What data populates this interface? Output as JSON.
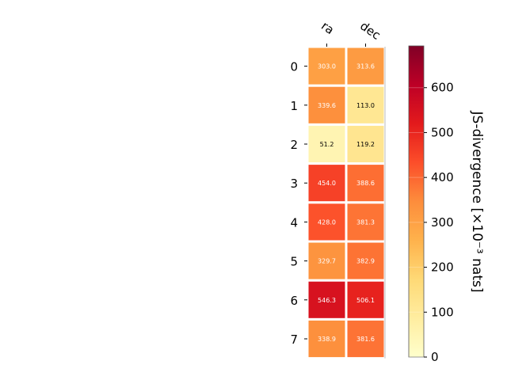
{
  "chart_data": {
    "type": "heatmap",
    "columns": [
      "ra",
      "dec"
    ],
    "rows": [
      "0",
      "1",
      "2",
      "3",
      "4",
      "5",
      "6",
      "7"
    ],
    "values": [
      [
        303.0,
        313.6
      ],
      [
        339.6,
        113.0
      ],
      [
        51.2,
        119.2
      ],
      [
        454.0,
        388.6
      ],
      [
        428.0,
        381.3
      ],
      [
        329.7,
        382.9
      ],
      [
        546.3,
        506.1
      ],
      [
        338.9,
        381.6
      ]
    ],
    "value_format": "0.1f",
    "colorbar": {
      "label": "JS-divergence [×10⁻³ nats]",
      "range": [
        0,
        693
      ],
      "ticks": [
        0,
        100,
        200,
        300,
        400,
        500,
        600
      ],
      "colormap": "YlOrRd"
    },
    "colors": {
      "cell_border": "#ffffff"
    }
  }
}
